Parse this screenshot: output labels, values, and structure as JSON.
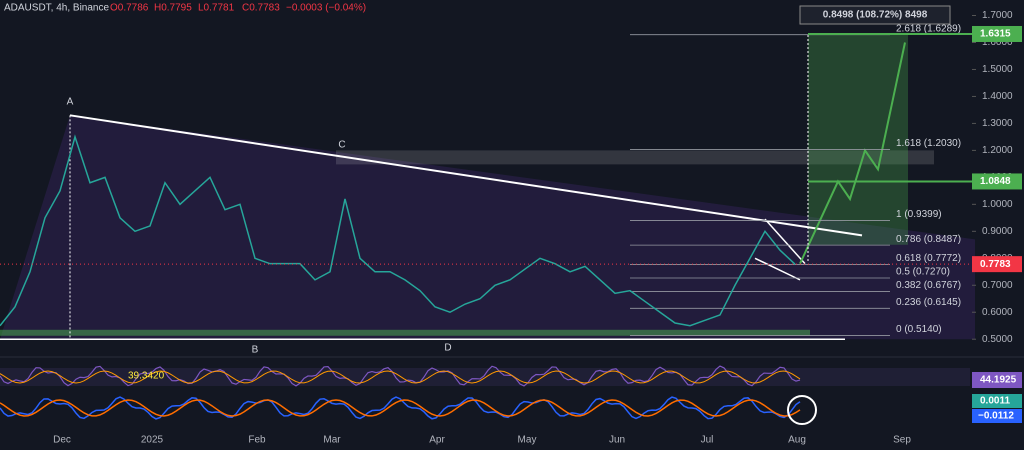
{
  "chart_data": {
    "type": "line",
    "title": "ADAUSDT, 4h, Binance",
    "ohlc": [
      "O0.7786",
      "H0.7795",
      "L0.7781",
      "C0.7783",
      "−0.0003 (−0.04%)"
    ],
    "color": "#26a69a",
    "categories": [
      null,
      null,
      null,
      null,
      "Dec",
      null,
      null,
      null,
      null,
      null,
      "2025",
      null,
      null,
      null,
      null,
      null,
      null,
      "Feb",
      null,
      null,
      null,
      null,
      "Mar",
      null,
      null,
      null,
      null,
      null,
      null,
      "Apr",
      null,
      null,
      null,
      null,
      null,
      "May",
      null,
      null,
      null,
      null,
      null,
      "Jun",
      null,
      null,
      null,
      null,
      null,
      "Jul",
      null,
      null,
      null,
      null,
      null,
      "Aug",
      null,
      null,
      null,
      null,
      null,
      null,
      "Sep"
    ],
    "values": [
      0.55,
      0.62,
      0.75,
      0.95,
      1.05,
      1.25,
      1.08,
      1.1,
      0.95,
      0.9,
      0.92,
      1.08,
      1.0,
      1.05,
      1.1,
      0.98,
      1.0,
      0.8,
      0.78,
      0.78,
      0.78,
      0.72,
      0.75,
      1.02,
      0.8,
      0.75,
      0.75,
      0.72,
      0.68,
      0.62,
      0.6,
      0.63,
      0.65,
      0.7,
      0.72,
      0.76,
      0.8,
      0.78,
      0.75,
      0.77,
      0.72,
      0.67,
      0.68,
      0.64,
      0.6,
      0.56,
      0.55,
      0.57,
      0.59,
      0.7,
      0.8,
      0.9,
      0.83,
      0.7783,
      null,
      null,
      null,
      null,
      null,
      null,
      null
    ],
    "ylim": [
      0.46,
      1.7575
    ],
    "yticks": [
      {
        "value": 0.5,
        "label": "0.5000"
      },
      {
        "value": 0.6,
        "label": "0.6000"
      },
      {
        "value": 0.7,
        "label": "0.7000"
      },
      {
        "value": 0.8,
        "label": "0.8000"
      },
      {
        "value": 0.9,
        "label": "0.9000"
      },
      {
        "value": 1.0,
        "label": "1.0000"
      },
      {
        "value": 1.1,
        "label": "1.1000"
      },
      {
        "value": 1.2,
        "label": "1.2000"
      },
      {
        "value": 1.3,
        "label": "1.3000"
      },
      {
        "value": 1.4,
        "label": "1.4000"
      },
      {
        "value": 1.5,
        "label": "1.5000"
      },
      {
        "value": 1.6,
        "label": "1.6000"
      },
      {
        "value": 1.7,
        "label": "1.7000"
      }
    ],
    "fib_levels": [
      {
        "value": 1.6289,
        "label": "2.618 (1.6289)"
      },
      {
        "value": 1.203,
        "label": "1.618 (1.2030)"
      },
      {
        "value": 0.9399,
        "label": "1 (0.9399)"
      },
      {
        "value": 0.8487,
        "label": "0.786 (0.8487)"
      },
      {
        "value": 0.7772,
        "label": "0.618 (0.7772)"
      },
      {
        "value": 0.727,
        "label": "0.5 (0.7270)"
      },
      {
        "value": 0.6767,
        "label": "0.382 (0.6767)"
      },
      {
        "value": 0.6145,
        "label": "0.236 (0.6145)"
      },
      {
        "value": 0.514,
        "label": "0 (0.5140)"
      }
    ],
    "price_tags": [
      {
        "value": 1.6315,
        "color": "#4caf50"
      },
      {
        "value": 1.0848,
        "color": "#4caf50"
      },
      {
        "value": 0.7783,
        "color": "#f23645"
      }
    ],
    "projection_label": "0.8498 (108.72%) 8498",
    "points": [
      "A",
      "B",
      "C",
      "D"
    ],
    "rsi": {
      "value": 44.1925,
      "other": 39.342
    },
    "rsi_other_label": "39.3420",
    "macd": [
      0.0011,
      -0.0112
    ],
    "macd_labels": [
      "0.0011",
      "−0.0112"
    ]
  }
}
